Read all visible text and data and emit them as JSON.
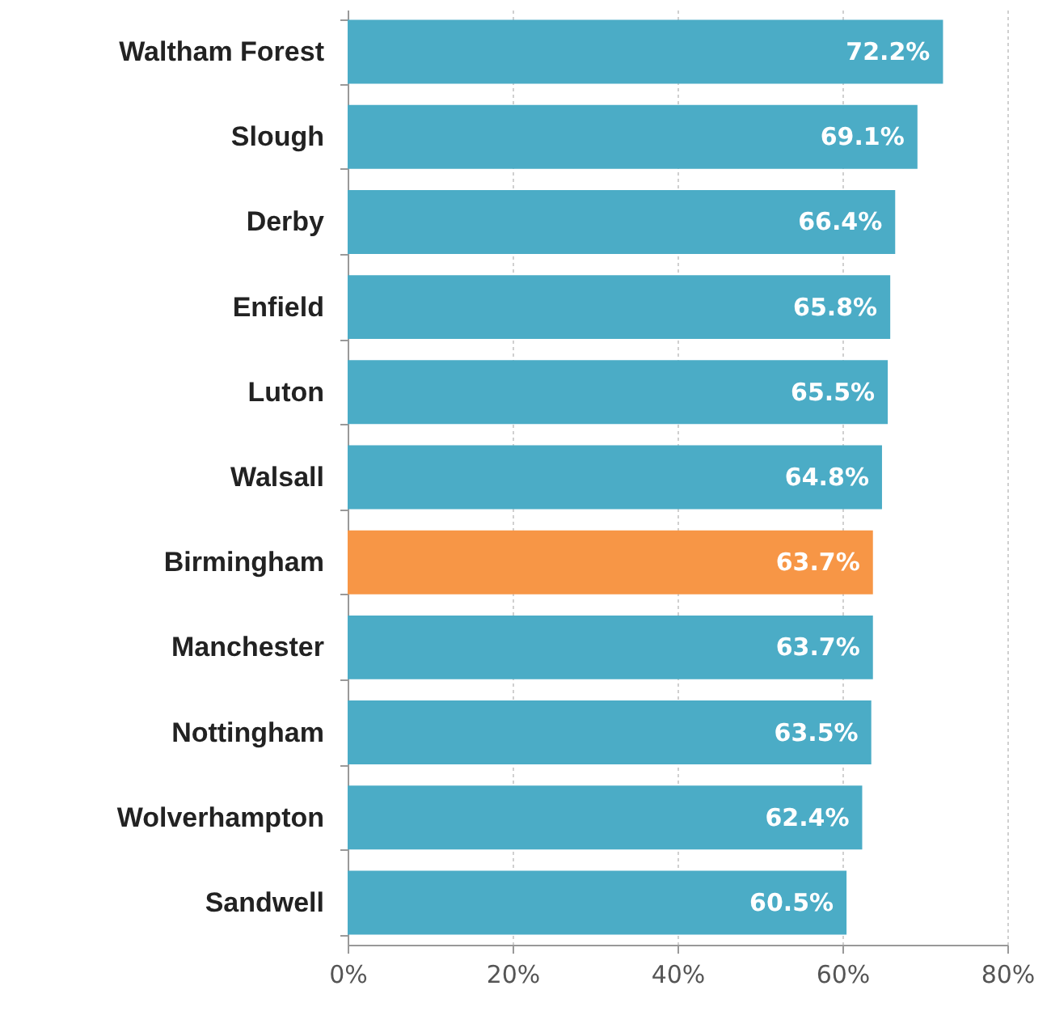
{
  "chart_data": {
    "type": "bar",
    "orientation": "horizontal",
    "categories": [
      "Waltham Forest",
      "Slough",
      "Derby",
      "Enfield",
      "Luton",
      "Walsall",
      "Birmingham",
      "Manchester",
      "Nottingham",
      "Wolverhampton",
      "Sandwell"
    ],
    "values": [
      72.2,
      69.1,
      66.4,
      65.8,
      65.5,
      64.8,
      63.7,
      63.7,
      63.5,
      62.4,
      60.5
    ],
    "colors": [
      "#4bacc6",
      "#4bacc6",
      "#4bacc6",
      "#4bacc6",
      "#4bacc6",
      "#4bacc6",
      "#f79646",
      "#4bacc6",
      "#4bacc6",
      "#4bacc6",
      "#4bacc6"
    ],
    "value_labels": [
      "72.2%",
      "69.1%",
      "66.4%",
      "65.8%",
      "65.5%",
      "64.8%",
      "63.7%",
      "63.7%",
      "63.5%",
      "62.4%",
      "60.5%"
    ],
    "xlim": [
      0,
      80
    ],
    "xticks": [
      {
        "value": 0,
        "label": "0%"
      },
      {
        "value": 20,
        "label": "20%"
      },
      {
        "value": 40,
        "label": "40%"
      },
      {
        "value": 60,
        "label": "60%"
      },
      {
        "value": 80,
        "label": "80%"
      }
    ],
    "grid": "x"
  }
}
